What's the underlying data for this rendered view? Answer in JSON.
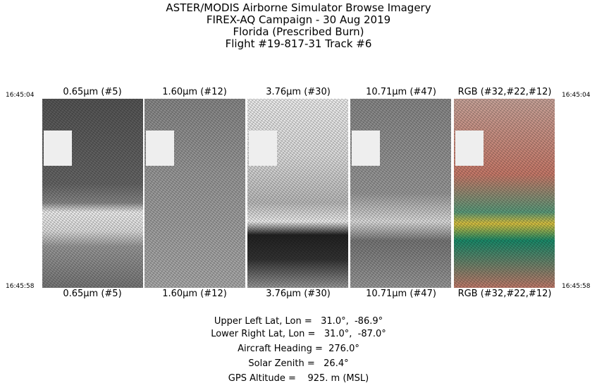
{
  "title_lines": [
    "ASTER/MODIS Airborne Simulator Browse Imagery",
    "FIREX-AQ Campaign - 30 Aug 2019",
    "Florida (Prescribed Burn)",
    "Flight #19-817-31 Track #6"
  ],
  "start_time": "16:45:04",
  "end_time": "16:45:58",
  "panels": [
    {
      "label": "0.65μm (#5)"
    },
    {
      "label": "1.60μm (#12)"
    },
    {
      "label": "3.76μm (#30)"
    },
    {
      "label": "10.71μm (#47)"
    },
    {
      "label": "RGB (#32,#22,#12)"
    }
  ],
  "info": {
    "upper_left": "Upper Left Lat, Lon =   31.0°,  -86.9°",
    "lower_right": "Lower Right Lat, Lon =   31.0°,  -87.0°",
    "heading": "Aircraft Heading =  276.0°",
    "solar_zenith": "Solar Zenith =   26.4°",
    "gps_altitude": "GPS Altitude =    925. m (MSL)"
  }
}
